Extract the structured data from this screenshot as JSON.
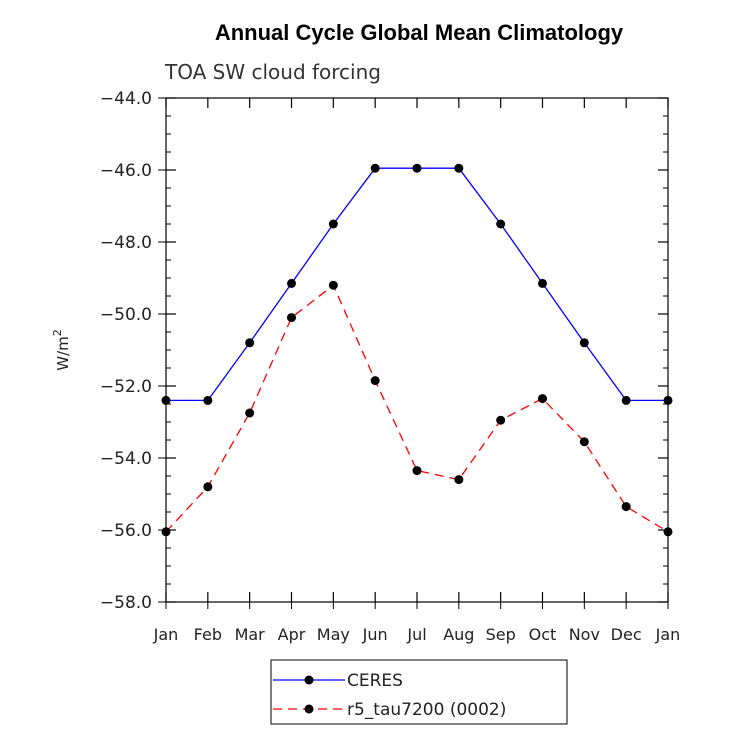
{
  "chart_data": {
    "type": "line",
    "title": "Annual Cycle Global Mean Climatology",
    "subtitle": "TOA SW cloud forcing",
    "ylabel_base": "W/m",
    "ylabel_sup": "2",
    "xlabel": "",
    "categories": [
      "Jan",
      "Feb",
      "Mar",
      "Apr",
      "May",
      "Jun",
      "Jul",
      "Aug",
      "Sep",
      "Oct",
      "Nov",
      "Dec",
      "Jan"
    ],
    "ylim": [
      -58.0,
      -44.0
    ],
    "yticks": [
      -58.0,
      -56.0,
      -54.0,
      -52.0,
      -50.0,
      -48.0,
      -46.0,
      -44.0
    ],
    "ytick_labels": [
      "−58.0",
      "−56.0",
      "−54.0",
      "−52.0",
      "−50.0",
      "−48.0",
      "−46.0",
      "−44.0"
    ],
    "series": [
      {
        "name": "CERES",
        "color": "#0000ff",
        "dash": "solid",
        "values": [
          -52.4,
          -52.4,
          -50.8,
          -49.15,
          -47.5,
          -45.95,
          -45.95,
          -45.95,
          -47.5,
          -49.15,
          -50.8,
          -52.4,
          -52.4
        ]
      },
      {
        "name": "r5_tau7200 (0002)",
        "color": "#ff0000",
        "dash": "dashed",
        "values": [
          -56.05,
          -54.8,
          -52.75,
          -50.1,
          -49.2,
          -51.85,
          -54.35,
          -54.6,
          -52.95,
          -52.35,
          -53.55,
          -55.35,
          -56.05
        ]
      }
    ],
    "legend": {
      "position": "bottom-center",
      "entries": [
        "CERES",
        "r5_tau7200 (0002)"
      ]
    },
    "marker_color": "#000000"
  }
}
